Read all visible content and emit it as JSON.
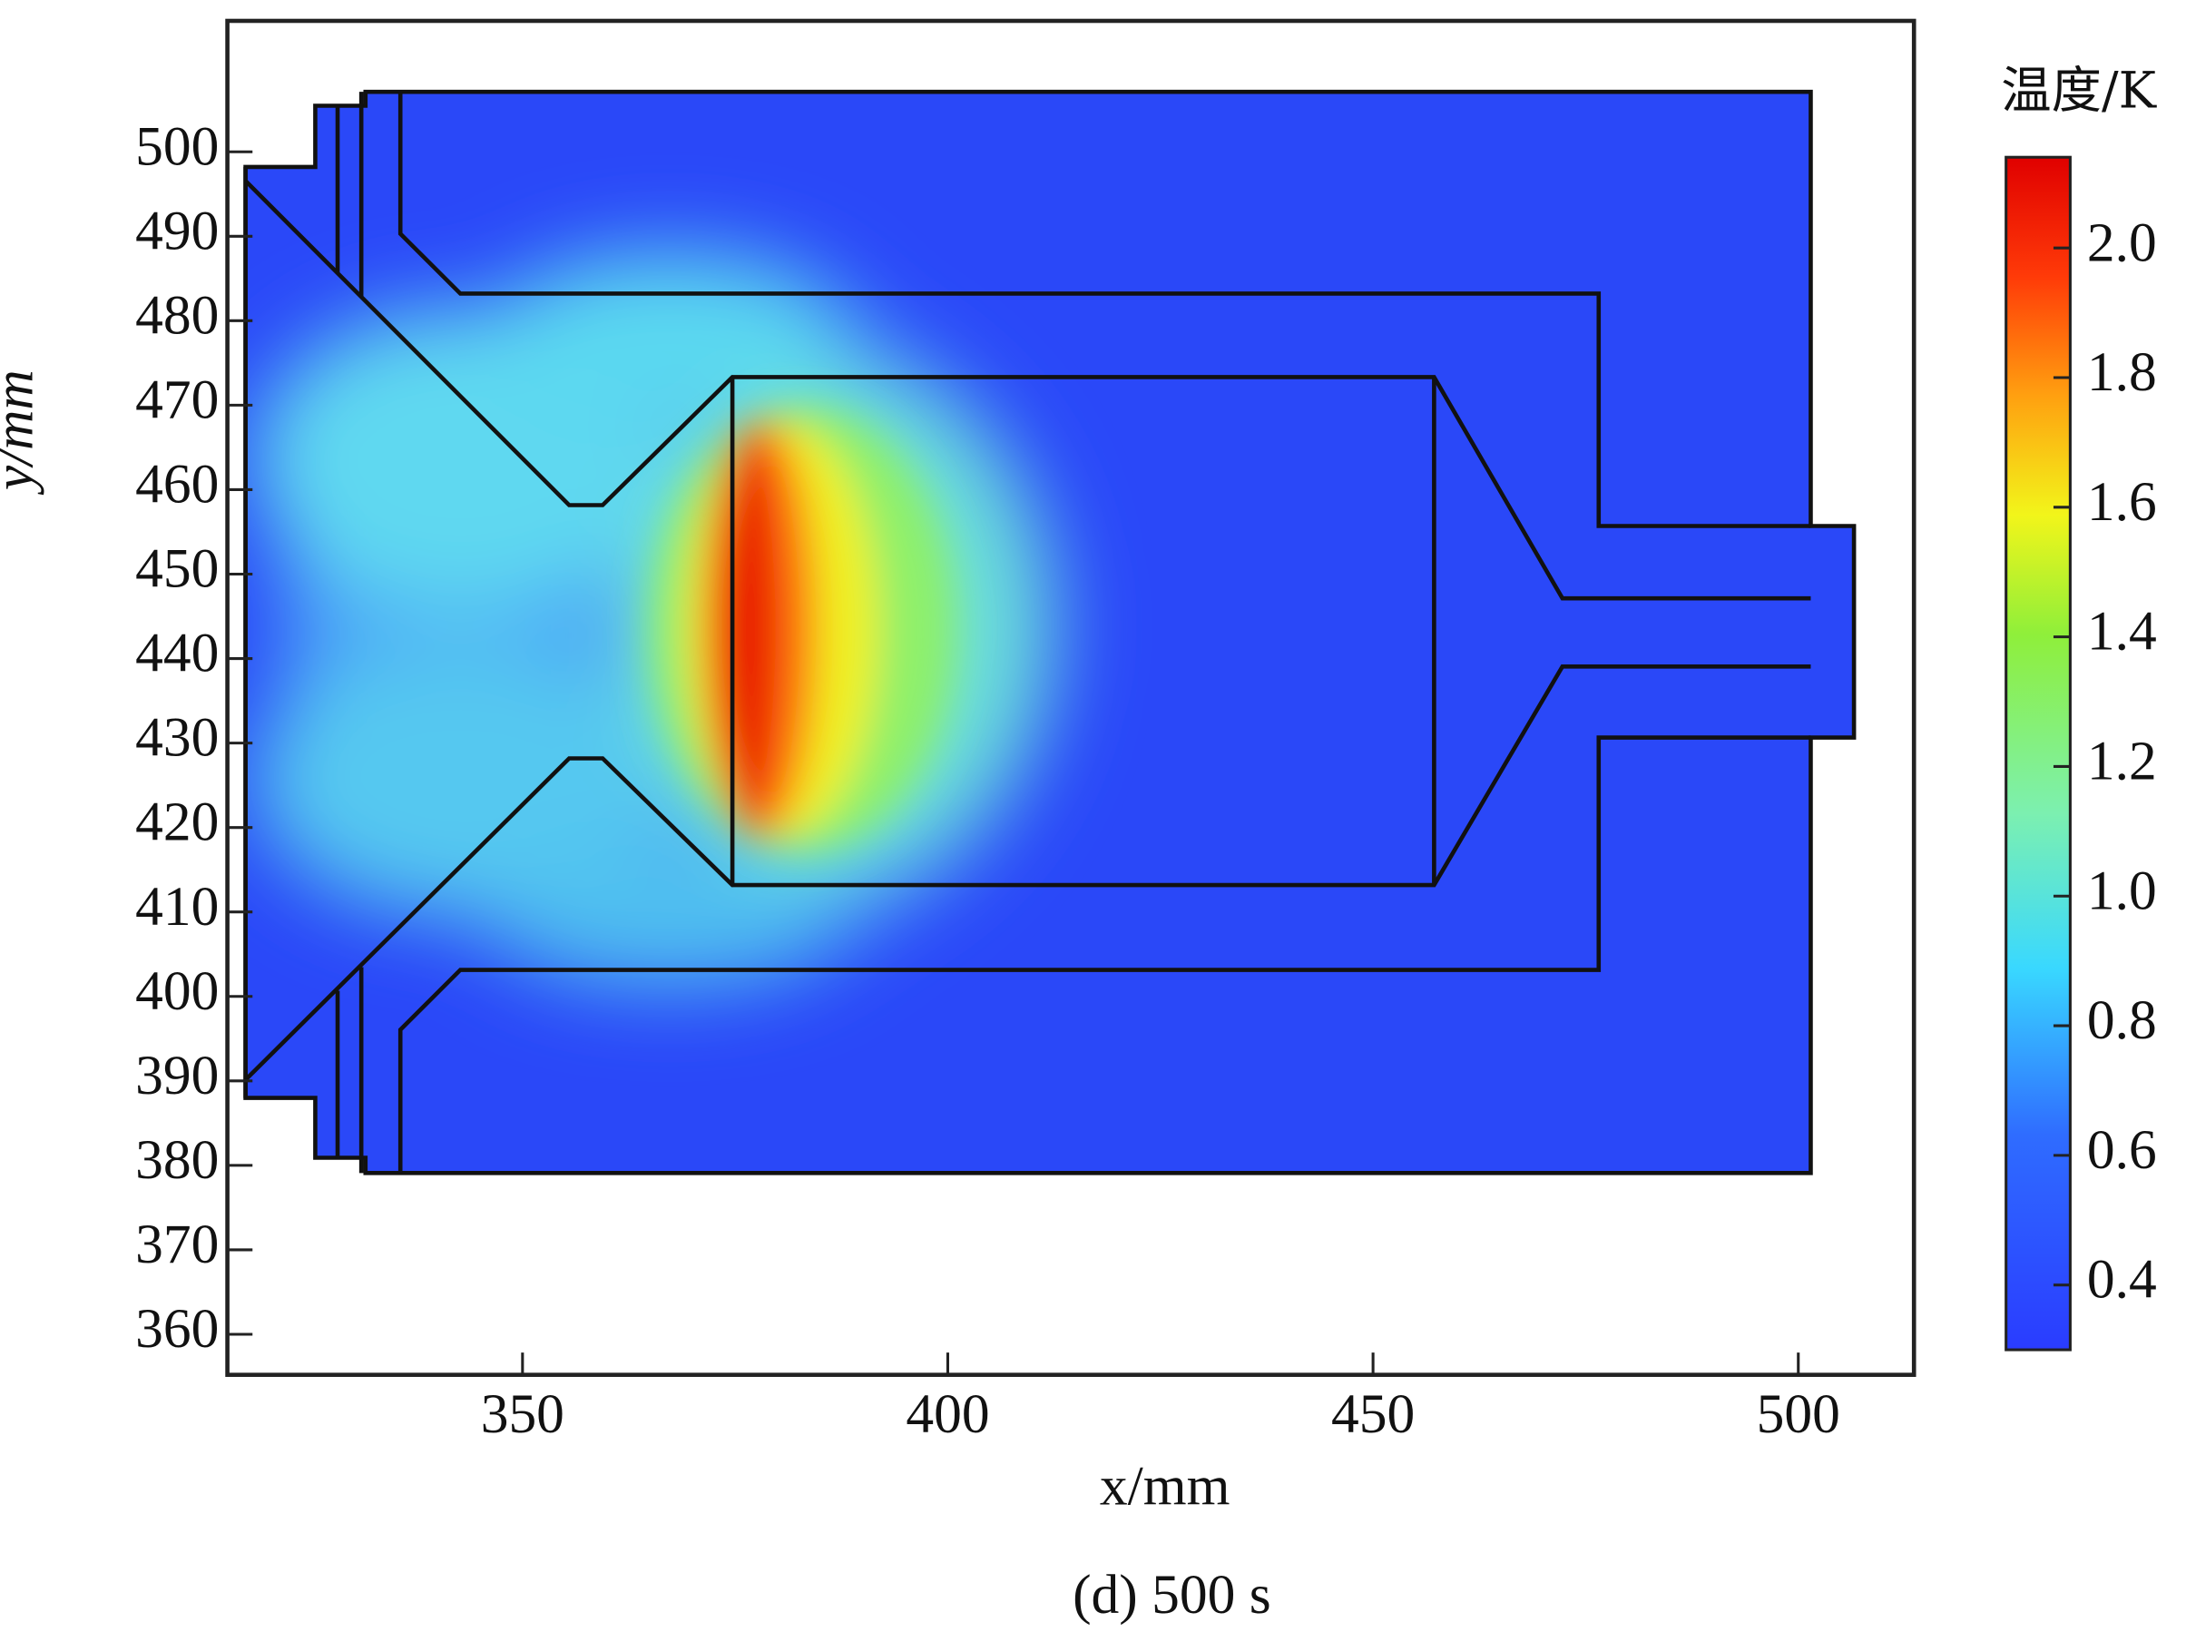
{
  "chart_data": {
    "type": "contour",
    "xlabel": "x/mm",
    "ylabel": "y/mm",
    "caption": "(d) 500 s",
    "xlim": [
      315.3,
      513.6
    ],
    "ylim": [
      355.2,
      515.5
    ],
    "xticks": [
      350,
      400,
      450,
      500
    ],
    "yticks": [
      360,
      370,
      380,
      390,
      400,
      410,
      420,
      430,
      440,
      450,
      460,
      470,
      480,
      490,
      500
    ],
    "colorbar": {
      "title": "温度/K",
      "lim": [
        0.3,
        2.14
      ],
      "ticks": [
        0.4,
        0.6,
        0.8,
        {
          "value": 1.0,
          "label": "1.0"
        },
        1.2,
        1.4,
        1.6,
        1.8,
        {
          "value": 2.0,
          "label": "2.0"
        }
      ],
      "colormap": "jet"
    }
  }
}
